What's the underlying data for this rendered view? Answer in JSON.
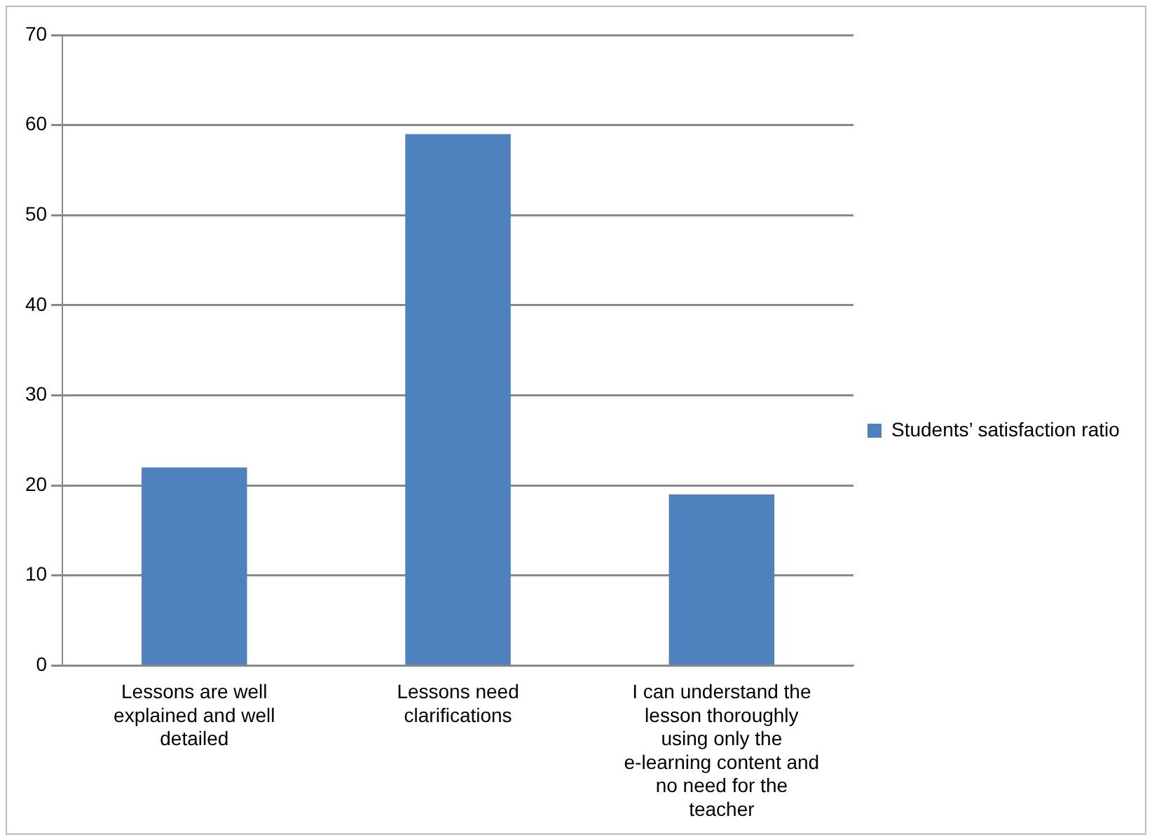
{
  "chart_data": {
    "type": "bar",
    "categories": [
      "Lessons are well explained and well detailed",
      "Lessons need clarifications",
      "I can understand the lesson thoroughly using only the e-learning content and no need for the teacher"
    ],
    "series": [
      {
        "name": "Students’ satisfaction ratio",
        "color": "#4f81bd",
        "values": [
          22,
          59,
          19
        ]
      }
    ],
    "ylim": [
      0,
      70
    ],
    "yticks": [
      0,
      10,
      20,
      30,
      40,
      50,
      60,
      70
    ],
    "grid": "y",
    "legend": "right"
  }
}
